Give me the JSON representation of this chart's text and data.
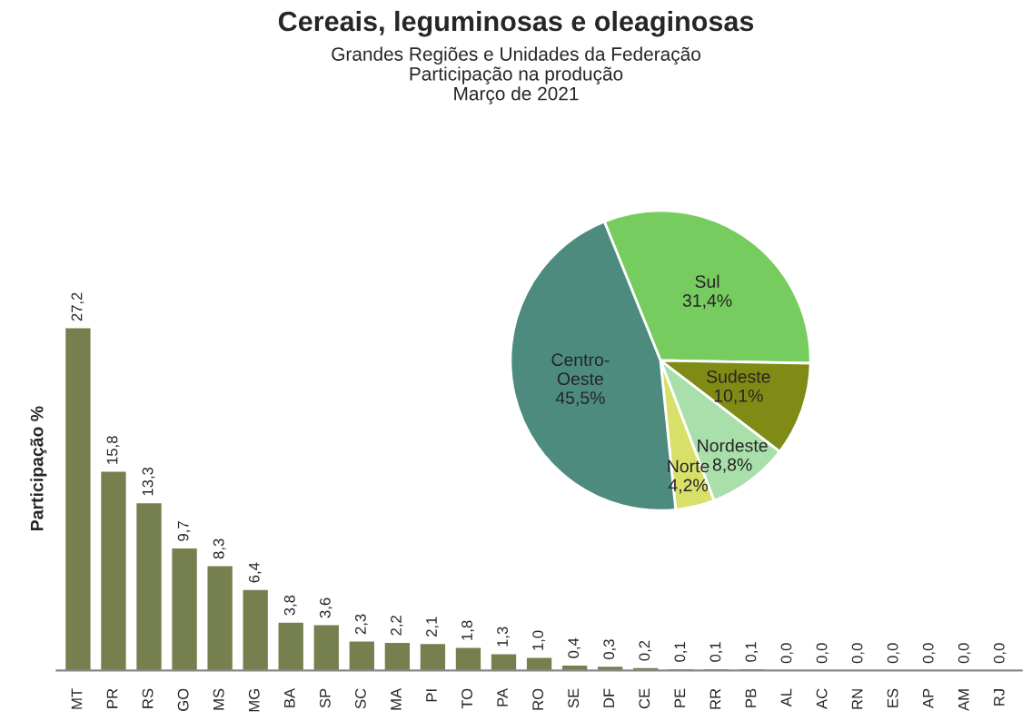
{
  "chart_data": [
    {
      "type": "bar",
      "title": "Cereais, leguminosas e oleaginosas",
      "subtitle": "Grandes Regiões e Unidades da Federação\nParticipação na produção\nMarço de 2021",
      "ylabel": "Participação %",
      "categories": [
        "MT",
        "PR",
        "RS",
        "GO",
        "MS",
        "MG",
        "BA",
        "SP",
        "SC",
        "MA",
        "PI",
        "TO",
        "PA",
        "RO",
        "SE",
        "DF",
        "CE",
        "PE",
        "RR",
        "PB",
        "AL",
        "AC",
        "RN",
        "ES",
        "AP",
        "AM",
        "RJ"
      ],
      "values": [
        27.2,
        15.8,
        13.3,
        9.7,
        8.3,
        6.4,
        3.8,
        3.6,
        2.3,
        2.2,
        2.1,
        1.8,
        1.3,
        1.0,
        0.4,
        0.3,
        0.2,
        0.1,
        0.1,
        0.1,
        0.0,
        0.0,
        0.0,
        0.0,
        0.0,
        0.0,
        0.0
      ],
      "value_labels": [
        "27,2",
        "15,8",
        "13,3",
        "9,7",
        "8,3",
        "6,4",
        "3,8",
        "3,6",
        "2,3",
        "2,2",
        "2,1",
        "1,8",
        "1,3",
        "1,0",
        "0,4",
        "0,3",
        "0,2",
        "0,1",
        "0,1",
        "0,1",
        "0,0",
        "0,0",
        "0,0",
        "0,0",
        "0,0",
        "0,0",
        "0,0"
      ],
      "color": "#76804e",
      "tick_labels": "x",
      "grid": false,
      "legend": false
    },
    {
      "type": "pie",
      "categories": [
        "Sul",
        "Sudeste",
        "Nordeste",
        "Norte",
        "Centro-Oeste"
      ],
      "values": [
        31.4,
        10.1,
        8.8,
        4.2,
        45.5
      ],
      "value_labels": [
        "31,4%",
        "10,1%",
        "8,8%",
        "4,2%",
        "45,5%"
      ],
      "colors": [
        "#77cc5f",
        "#7f8b14",
        "#a9dfaa",
        "#d9e06a",
        "#4d8b7f"
      ],
      "legend": false
    }
  ]
}
